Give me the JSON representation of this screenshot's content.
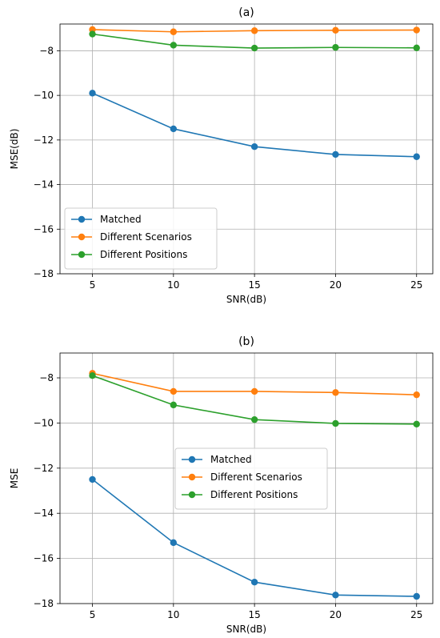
{
  "chart_data": [
    {
      "type": "line",
      "title": "(a)",
      "xlabel": "SNR(dB)",
      "ylabel": "MSE(dB)",
      "x": [
        5,
        10,
        15,
        20,
        25
      ],
      "xticks": [
        5,
        10,
        15,
        20,
        25
      ],
      "ylim": [
        -18,
        -6.8
      ],
      "yticks": [
        -18,
        -16,
        -14,
        -12,
        -10,
        -8
      ],
      "grid": true,
      "legend_position": "lower-left",
      "series": [
        {
          "name": "Matched",
          "color": "#1f77b4",
          "values": [
            -9.9,
            -11.5,
            -12.3,
            -12.65,
            -12.75
          ]
        },
        {
          "name": "Different Scenarios",
          "color": "#ff7f0e",
          "values": [
            -7.05,
            -7.15,
            -7.1,
            -7.08,
            -7.07
          ]
        },
        {
          "name": "Different Positions",
          "color": "#2ca02c",
          "values": [
            -7.25,
            -7.75,
            -7.88,
            -7.85,
            -7.87
          ]
        }
      ]
    },
    {
      "type": "line",
      "title": "(b)",
      "xlabel": "SNR(dB)",
      "ylabel": "MSE",
      "x": [
        5,
        10,
        15,
        20,
        25
      ],
      "xticks": [
        5,
        10,
        15,
        20,
        25
      ],
      "ylim": [
        -18,
        -6.9
      ],
      "yticks": [
        -18,
        -16,
        -14,
        -12,
        -10,
        -8
      ],
      "grid": true,
      "legend_position": "center",
      "series": [
        {
          "name": "Matched",
          "color": "#1f77b4",
          "values": [
            -12.5,
            -15.3,
            -17.05,
            -17.62,
            -17.68
          ]
        },
        {
          "name": "Different Scenarios",
          "color": "#ff7f0e",
          "values": [
            -7.8,
            -8.6,
            -8.6,
            -8.65,
            -8.75
          ]
        },
        {
          "name": "Different Positions",
          "color": "#2ca02c",
          "values": [
            -7.9,
            -9.2,
            -9.85,
            -10.02,
            -10.05
          ]
        }
      ]
    }
  ]
}
